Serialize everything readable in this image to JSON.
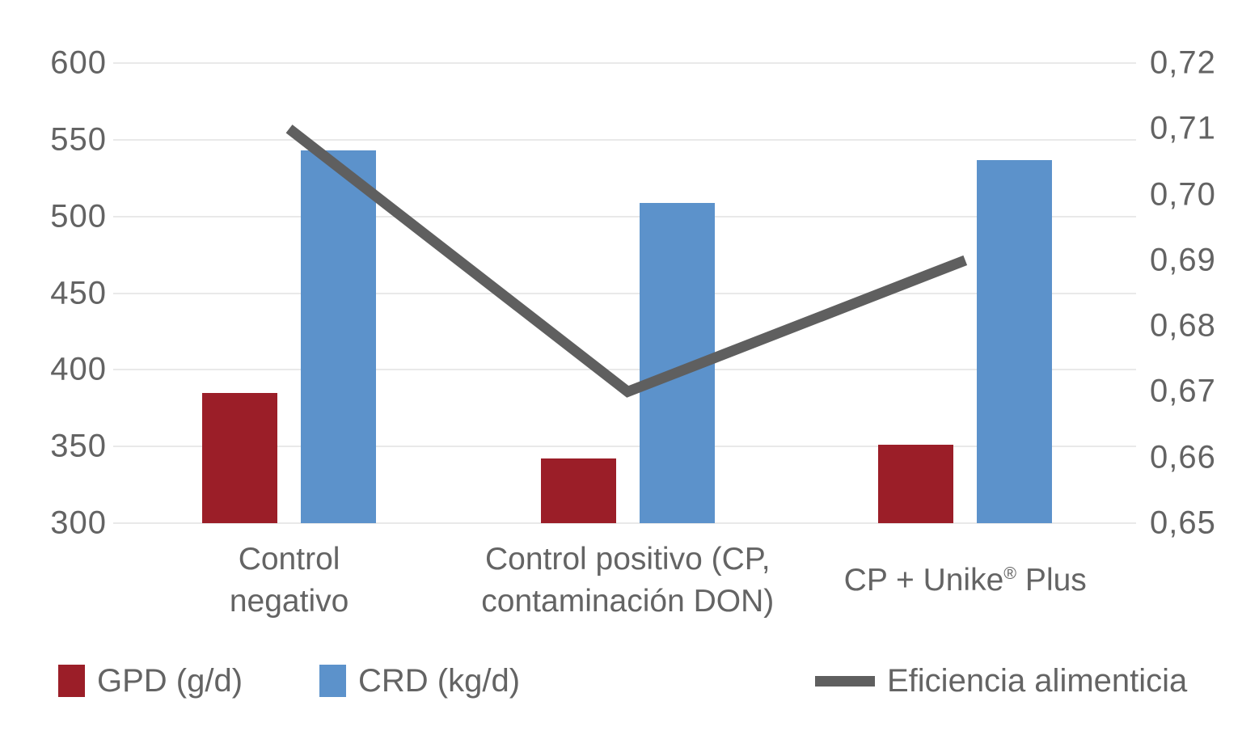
{
  "chart_data": {
    "type": "combo",
    "categories": [
      [
        "Control",
        "negativo"
      ],
      [
        "Control positivo (CP,",
        "contaminación DON)"
      ],
      [
        "CP + Unike® Plus"
      ]
    ],
    "series": [
      {
        "name": "GPD (g/d)",
        "type": "bar",
        "axis": "left",
        "color": "#9B1E28",
        "values": [
          385,
          342,
          351
        ]
      },
      {
        "name": "CRD (kg/d)",
        "type": "bar",
        "axis": "left",
        "color": "#5C92CB",
        "values": [
          543,
          509,
          537
        ]
      },
      {
        "name": "Eficiencia alimenticia",
        "type": "line",
        "axis": "right",
        "color": "#5F5F5F",
        "values": [
          0.71,
          0.67,
          0.69
        ]
      }
    ],
    "left_axis": {
      "min": 300,
      "max": 600,
      "ticks": [
        "600",
        "550",
        "500",
        "450",
        "400",
        "350",
        "300"
      ]
    },
    "right_axis": {
      "min": 0.65,
      "max": 0.72,
      "ticks": [
        "0,72",
        "0,71",
        "0,70",
        "0,69",
        "0,68",
        "0,67",
        "0,66",
        "0,65"
      ]
    },
    "grid": true,
    "legend_position": "bottom",
    "title": "",
    "xlabel": "",
    "ylabel": ""
  },
  "legend": {
    "items": [
      {
        "label": "GPD (g/d)",
        "swatch": "square",
        "color": "#9B1E28"
      },
      {
        "label": "CRD (kg/d)",
        "swatch": "square",
        "color": "#5C92CB"
      },
      {
        "label": "Eficiencia alimenticia",
        "swatch": "line",
        "color": "#5F5F5F"
      }
    ]
  },
  "colors": {
    "gridline": "#e9e9e9",
    "text": "#636363",
    "background": "#ffffff"
  }
}
